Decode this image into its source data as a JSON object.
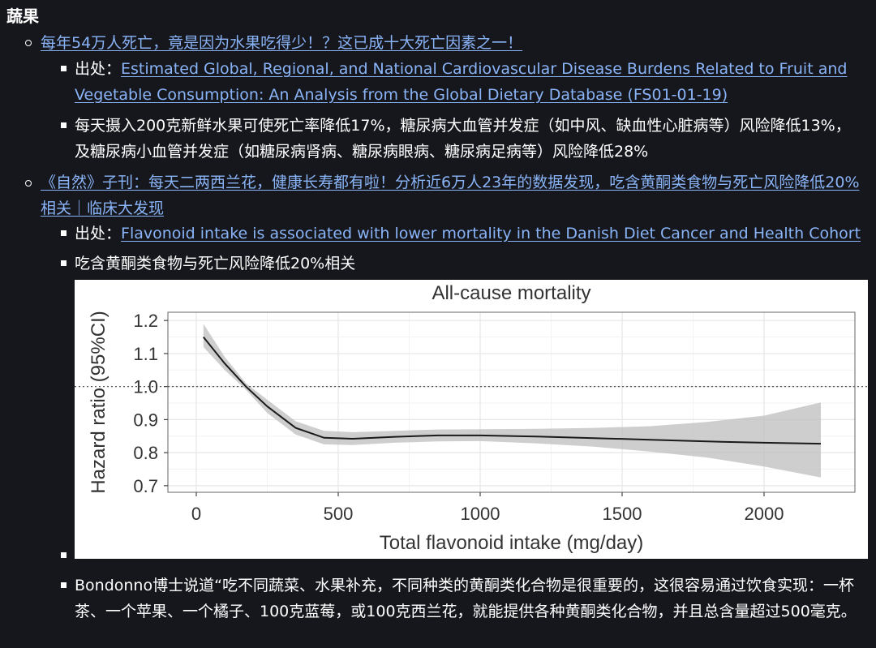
{
  "section_title": "蔬果",
  "items": [
    {
      "link": "每年54万人死亡，竟是因为水果吃得少！？这已成十大死亡因素之一！",
      "source_label": "出处：",
      "source_link": "Estimated Global, Regional, and National Cardiovascular Disease Burdens Related to Fruit and Vegetable Consumption: An Analysis from the Global Dietary Database (FS01-01-19)",
      "note": "每天摄入200克新鲜水果可使死亡率降低17%，糖尿病大血管并发症（如中风、缺血性心脏病等）风险降低13%，及糖尿病小血管并发症（如糖尿病肾病、糖尿病眼病、糖尿病足病等）风险降低28%"
    },
    {
      "link": "《自然》子刊：每天二两西兰花，健康长寿都有啦！分析近6万人23年的数据发现，吃含黄酮类食物与死亡风险降低20%相关｜临床大发现",
      "source_label": "出处：",
      "source_link": "Flavonoid intake is associated with lower mortality in the Danish Diet Cancer and Health Cohort",
      "note": "吃含黄酮类食物与死亡风险降低20%相关",
      "quote": "Bondonno博士说道“吃不同蔬菜、水果补充，不同种类的黄酮类化合物是很重要的，这很容易通过饮食实现：一杯茶、一个苹果、一个橘子、100克蓝莓，或100克西兰花，就能提供各种黄酮类化合物，并且总含量超过500毫克。"
    }
  ],
  "chart_data": {
    "type": "line",
    "title": "All-cause mortality",
    "xlabel": "Total flavonoid intake (mg/day)",
    "ylabel": "Hazard ratio (95%CI)",
    "xlim": [
      -100,
      2320
    ],
    "ylim": [
      0.68,
      1.225
    ],
    "xticks": [
      "0",
      "500",
      "1000",
      "1500",
      "2000"
    ],
    "yticks": [
      "0.7",
      "0.8",
      "0.9",
      "1.0",
      "1.1",
      "1.2"
    ],
    "reference_line": 1.0,
    "series": [
      {
        "x": [
          25,
          100,
          175,
          250,
          350,
          450,
          550,
          700,
          850,
          1000,
          1200,
          1400,
          1600,
          1800,
          2000,
          2200
        ],
        "y": [
          1.15,
          1.07,
          1.0,
          0.94,
          0.875,
          0.845,
          0.842,
          0.848,
          0.852,
          0.852,
          0.849,
          0.844,
          0.839,
          0.834,
          0.83,
          0.827
        ],
        "lower": [
          1.12,
          1.05,
          0.99,
          0.92,
          0.855,
          0.825,
          0.823,
          0.83,
          0.834,
          0.835,
          0.828,
          0.818,
          0.803,
          0.785,
          0.758,
          0.725
        ],
        "upper": [
          1.19,
          1.09,
          1.01,
          0.96,
          0.895,
          0.866,
          0.862,
          0.866,
          0.87,
          0.871,
          0.872,
          0.875,
          0.88,
          0.893,
          0.912,
          0.952
        ]
      }
    ],
    "grid": true
  }
}
